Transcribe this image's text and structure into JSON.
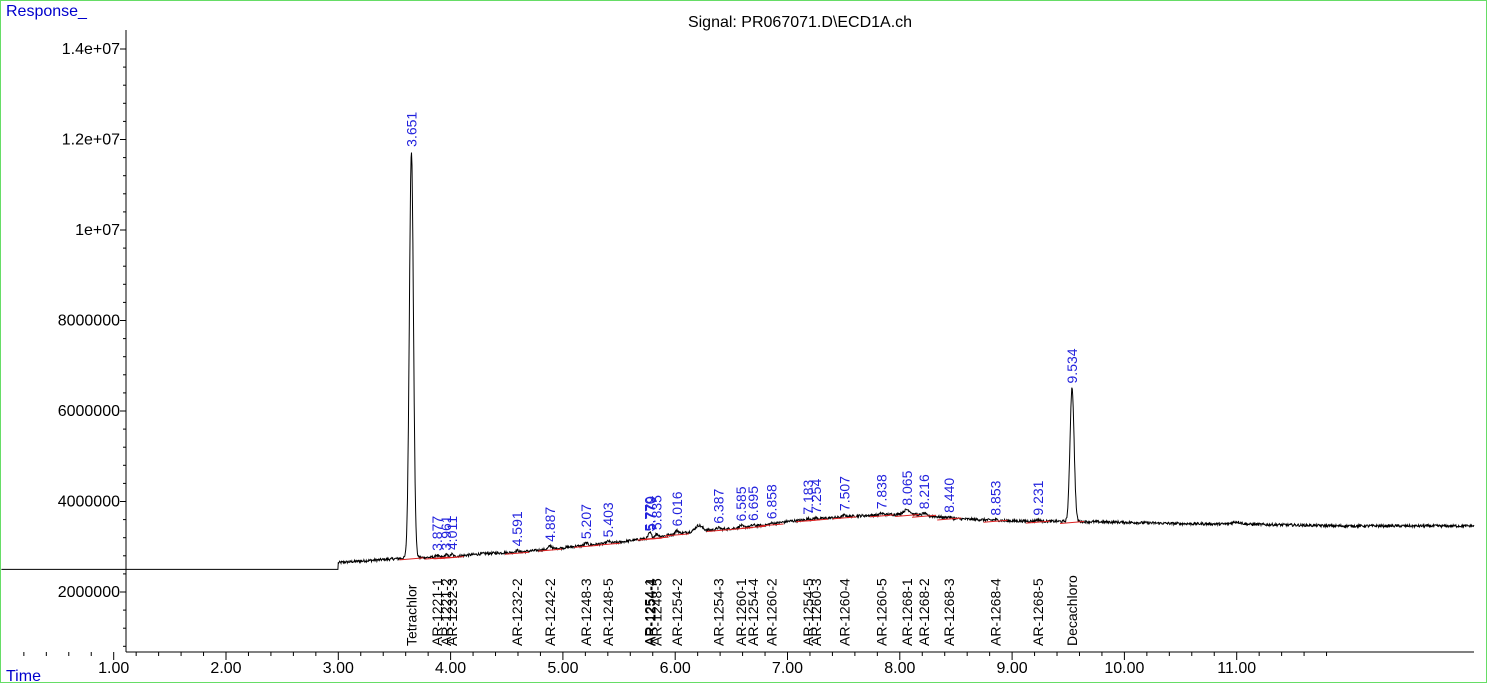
{
  "chart_data": {
    "type": "line",
    "title": "Signal: PR067071.D\\ECD1A.ch",
    "ylabel": "Response_",
    "xlabel": "Time",
    "xlim": [
      0.0,
      12.0
    ],
    "ylim": [
      700000,
      14000000
    ],
    "x_ticks": [
      "1.00",
      "2.00",
      "3.00",
      "4.00",
      "5.00",
      "6.00",
      "7.00",
      "8.00",
      "9.00",
      "10.00",
      "11.00"
    ],
    "x_tick_values": [
      1,
      2,
      3,
      4,
      5,
      6,
      7,
      8,
      9,
      10,
      11
    ],
    "y_ticks": [
      "2000000",
      "4000000",
      "6000000",
      "8000000",
      "1e+07",
      "1.2e+07",
      "1.4e+07"
    ],
    "y_tick_values": [
      2000000,
      4000000,
      6000000,
      8000000,
      10000000,
      12000000,
      14000000
    ],
    "baseline": [
      [
        0.0,
        2500000
      ],
      [
        3.0,
        2500000
      ],
      [
        3.0,
        2650000
      ],
      [
        3.3,
        2700000
      ],
      [
        3.6,
        2750000
      ],
      [
        4.0,
        2780000
      ],
      [
        4.3,
        2850000
      ],
      [
        4.6,
        2880000
      ],
      [
        4.9,
        2950000
      ],
      [
        5.2,
        3030000
      ],
      [
        5.5,
        3100000
      ],
      [
        5.8,
        3200000
      ],
      [
        6.0,
        3280000
      ],
      [
        6.2,
        3350000
      ],
      [
        6.5,
        3400000
      ],
      [
        6.8,
        3480000
      ],
      [
        7.0,
        3560000
      ],
      [
        7.3,
        3620000
      ],
      [
        7.6,
        3680000
      ],
      [
        8.0,
        3720000
      ],
      [
        8.2,
        3700000
      ],
      [
        8.5,
        3620000
      ],
      [
        9.0,
        3570000
      ],
      [
        9.5,
        3560000
      ],
      [
        10.0,
        3540000
      ],
      [
        10.5,
        3510000
      ],
      [
        11.0,
        3500000
      ],
      [
        11.5,
        3480000
      ],
      [
        11.9,
        3460000
      ]
    ],
    "peaks": [
      {
        "label": "3.651",
        "rt": 3.651,
        "height": 11750000,
        "width": 0.018
      },
      {
        "label": "3.877",
        "rt": 3.877,
        "height": 2820000,
        "width": 0.01
      },
      {
        "label": "3.961",
        "rt": 3.961,
        "height": 2830000,
        "width": 0.01
      },
      {
        "label": "4.011",
        "rt": 4.011,
        "height": 2840000,
        "width": 0.01
      },
      {
        "label": "4.591",
        "rt": 4.591,
        "height": 2920000,
        "width": 0.015
      },
      {
        "label": "4.887",
        "rt": 4.887,
        "height": 3020000,
        "width": 0.015
      },
      {
        "label": "5.207",
        "rt": 5.207,
        "height": 3080000,
        "width": 0.015
      },
      {
        "label": "5.403",
        "rt": 5.403,
        "height": 3120000,
        "width": 0.015
      },
      {
        "label": "5.770",
        "rt": 5.77,
        "height": 3250000,
        "width": 0.012
      },
      {
        "label": "5.779",
        "rt": 5.779,
        "height": 3260000,
        "width": 0.012
      },
      {
        "label": "5.835",
        "rt": 5.835,
        "height": 3280000,
        "width": 0.015
      },
      {
        "label": "6.016",
        "rt": 6.016,
        "height": 3360000,
        "width": 0.015
      },
      {
        "label": "6.387",
        "rt": 6.387,
        "height": 3420000,
        "width": 0.015
      },
      {
        "label": "6.585",
        "rt": 6.585,
        "height": 3470000,
        "width": 0.015
      },
      {
        "label": "6.695",
        "rt": 6.695,
        "height": 3480000,
        "width": 0.015
      },
      {
        "label": "6.858",
        "rt": 6.858,
        "height": 3520000,
        "width": 0.015
      },
      {
        "label": "7.183",
        "rt": 7.183,
        "height": 3620000,
        "width": 0.015
      },
      {
        "label": "7.254",
        "rt": 7.254,
        "height": 3640000,
        "width": 0.015
      },
      {
        "label": "7.507",
        "rt": 7.507,
        "height": 3700000,
        "width": 0.015
      },
      {
        "label": "7.838",
        "rt": 7.838,
        "height": 3740000,
        "width": 0.015
      },
      {
        "label": "8.065",
        "rt": 8.065,
        "height": 3820000,
        "width": 0.03
      },
      {
        "label": "8.216",
        "rt": 8.216,
        "height": 3740000,
        "width": 0.015
      },
      {
        "label": "8.440",
        "rt": 8.44,
        "height": 3660000,
        "width": 0.015
      },
      {
        "label": "8.853",
        "rt": 8.853,
        "height": 3600000,
        "width": 0.015
      },
      {
        "label": "9.231",
        "rt": 9.231,
        "height": 3600000,
        "width": 0.015
      },
      {
        "label": "9.534",
        "rt": 9.534,
        "height": 6520000,
        "width": 0.018
      }
    ],
    "compounds": [
      {
        "label": "Tetrachlor",
        "rt": 3.651
      },
      {
        "label": "AR-1221-1",
        "rt": 3.877
      },
      {
        "label": "AR-1221-2",
        "rt": 3.961
      },
      {
        "label": "AR-1232-3",
        "rt": 4.011
      },
      {
        "label": "AR-1232-2",
        "rt": 4.591
      },
      {
        "label": "AR-1242-2",
        "rt": 4.887
      },
      {
        "label": "AR-1248-3",
        "rt": 5.207
      },
      {
        "label": "AR-1248-5",
        "rt": 5.403
      },
      {
        "label": "AR-1254-1",
        "rt": 5.77
      },
      {
        "label": "AR-1254-4",
        "rt": 5.779
      },
      {
        "label": "AR-1248-5",
        "rt": 5.835
      },
      {
        "label": "AR-1254-2",
        "rt": 6.016
      },
      {
        "label": "AR-1254-3",
        "rt": 6.387
      },
      {
        "label": "AR-1260-1",
        "rt": 6.585
      },
      {
        "label": "AR-1254-4",
        "rt": 6.695
      },
      {
        "label": "AR-1260-2",
        "rt": 6.858
      },
      {
        "label": "AR-1254-5",
        "rt": 7.183
      },
      {
        "label": "AR-1260-3",
        "rt": 7.254
      },
      {
        "label": "AR-1260-4",
        "rt": 7.507
      },
      {
        "label": "AR-1260-5",
        "rt": 7.838
      },
      {
        "label": "AR-1268-1",
        "rt": 8.065
      },
      {
        "label": "AR-1268-2",
        "rt": 8.216
      },
      {
        "label": "AR-1268-3",
        "rt": 8.44
      },
      {
        "label": "AR-1268-4",
        "rt": 8.853
      },
      {
        "label": "AR-1268-5",
        "rt": 9.231
      },
      {
        "label": "Decachloro",
        "rt": 9.534
      }
    ],
    "colors": {
      "trace": "#000000",
      "peak_label": "#2222dd",
      "axis_title": "#0000cc",
      "frame": "#66dd66",
      "integration": "#dd2222"
    }
  }
}
